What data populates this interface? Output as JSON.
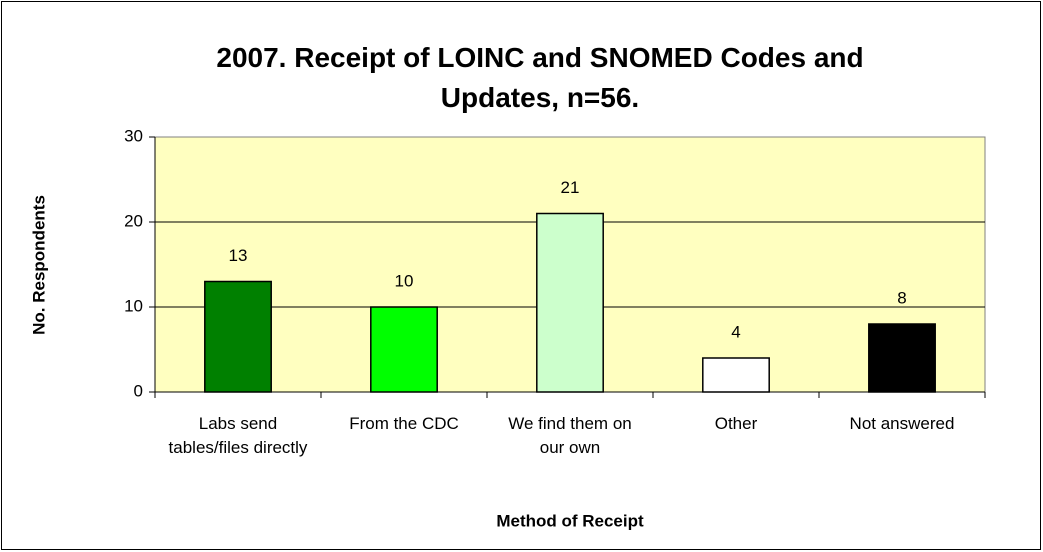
{
  "chart_data": {
    "type": "bar",
    "title": "2007. Receipt of LOINC and SNOMED Codes and Updates, n=56.",
    "x_label": "Method of Receipt",
    "y_label": "No. Respondents",
    "categories": [
      "Labs send tables/files directly",
      "From the CDC",
      "We find them on our own",
      "Other",
      "Not answered"
    ],
    "values": [
      13,
      10,
      21,
      4,
      8
    ],
    "colors": [
      "#008000",
      "#00ff00",
      "#ccffcc",
      "#ffffff",
      "#000000"
    ],
    "ylim": [
      0,
      30
    ],
    "yticks": [
      0,
      10,
      20,
      30
    ],
    "grid": true,
    "plot_background": "#ffffc0"
  }
}
